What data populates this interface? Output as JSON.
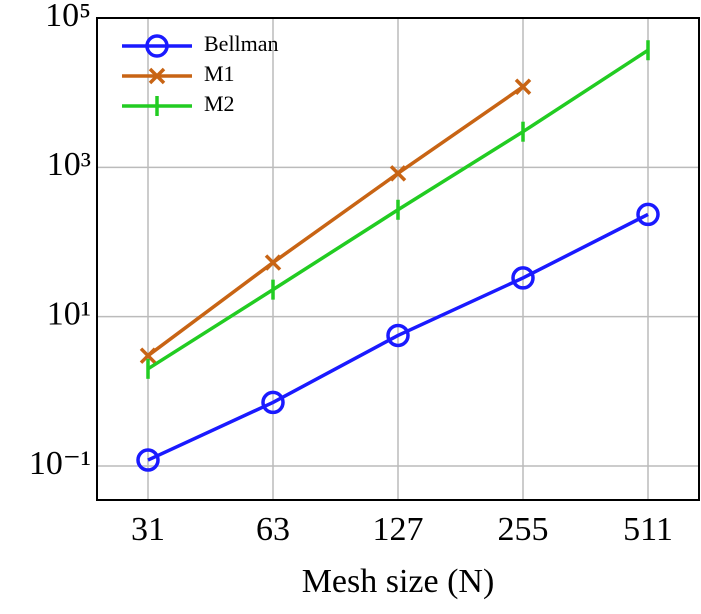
{
  "chart_data": {
    "type": "line",
    "x_label": "Mesh size (N)",
    "categories": [
      "31",
      "63",
      "127",
      "255",
      "511"
    ],
    "log_scale_y": true,
    "ylim": [
      0.035,
      100000
    ],
    "yticks": [
      {
        "value": 0.1,
        "label": "10⁻¹"
      },
      {
        "value": 10,
        "label": "10¹"
      },
      {
        "value": 1000,
        "label": "10³"
      },
      {
        "value": 100000,
        "label": "10⁵"
      }
    ],
    "grid": true,
    "legend": "upper-left",
    "series": [
      {
        "name": "Bellman",
        "color": "#1a1aff",
        "marker": "o",
        "values": [
          0.12,
          0.71,
          5.6,
          33,
          234
        ]
      },
      {
        "name": "M1",
        "color": "#c86414",
        "marker": "x",
        "values": [
          3.0,
          53,
          830,
          12000,
          null
        ]
      },
      {
        "name": "M2",
        "color": "#22cc22",
        "marker": "|",
        "values": [
          2.0,
          23,
          270,
          3000,
          37000
        ]
      }
    ]
  }
}
